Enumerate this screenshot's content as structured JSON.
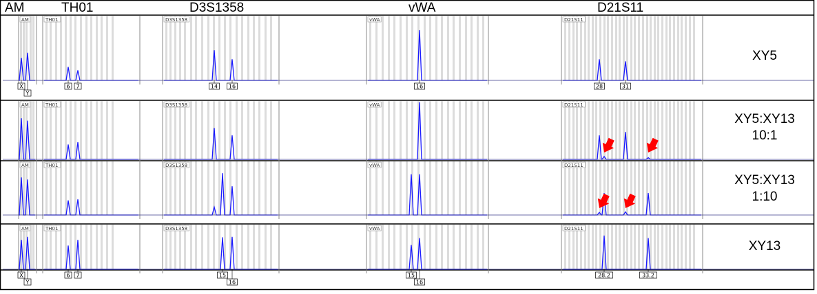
{
  "header": {
    "loci": [
      "AM",
      "TH01",
      "D3S1358",
      "vWA",
      "D21S11"
    ]
  },
  "panel_tags": [
    "AM",
    "TH01",
    "D3S1358",
    "vWA",
    "D21S11"
  ],
  "arrow_color": "#ff0000",
  "trace_color": "#1a1aff",
  "chart_data": {
    "type": "electropherogram",
    "samples": [
      {
        "name": "XY5",
        "label_lines": [
          "XY5"
        ],
        "peaks": {
          "AM": [
            {
              "allele": "X",
              "height": 0.45
            },
            {
              "allele": "Y",
              "height": 0.55
            }
          ],
          "TH01": [
            {
              "allele": "6",
              "height": 0.27
            },
            {
              "allele": "7",
              "height": 0.2
            }
          ],
          "D3S1358": [
            {
              "allele": "14",
              "height": 0.6
            },
            {
              "allele": "16",
              "height": 0.42
            }
          ],
          "vWA": [
            {
              "allele": "16",
              "height": 1.0
            }
          ],
          "D21S11": [
            {
              "allele": "28",
              "height": 0.42
            },
            {
              "allele": "31",
              "height": 0.38
            }
          ]
        },
        "labels_bottom": {
          "AM": [
            "X",
            "Y"
          ],
          "TH01": [
            "6",
            "7"
          ],
          "D3S1358": [
            "14",
            "16"
          ],
          "vWA": [
            "16"
          ],
          "D21S11": [
            "28",
            "31"
          ]
        },
        "arrows": []
      },
      {
        "name": "XY5:XY13 10:1",
        "label_lines": [
          "XY5:XY13",
          "10:1"
        ],
        "peaks": {
          "AM": [
            {
              "allele": "X",
              "height": 0.72
            },
            {
              "allele": "Y",
              "height": 0.68
            }
          ],
          "TH01": [
            {
              "allele": "6",
              "height": 0.26
            },
            {
              "allele": "7",
              "height": 0.3
            }
          ],
          "D3S1358": [
            {
              "allele": "14",
              "height": 0.55
            },
            {
              "allele": "16",
              "height": 0.42
            }
          ],
          "vWA": [
            {
              "allele": "16",
              "height": 1.0
            }
          ],
          "D21S11": [
            {
              "allele": "28",
              "height": 0.42
            },
            {
              "allele": "28.2",
              "height": 0.05
            },
            {
              "allele": "31",
              "height": 0.48
            },
            {
              "allele": "33.2",
              "height": 0.03
            }
          ]
        },
        "labels_bottom": {},
        "arrows": [
          {
            "allele": "28.2"
          },
          {
            "allele": "33.2"
          }
        ]
      },
      {
        "name": "XY5:XY13 1:10",
        "label_lines": [
          "XY5:XY13",
          "1:10"
        ],
        "peaks": {
          "AM": [
            {
              "allele": "X",
              "height": 0.72
            },
            {
              "allele": "Y",
              "height": 0.68
            }
          ],
          "TH01": [
            {
              "allele": "6",
              "height": 0.28
            },
            {
              "allele": "7",
              "height": 0.3
            }
          ],
          "D3S1358": [
            {
              "allele": "14",
              "height": 0.15
            },
            {
              "allele": "15",
              "height": 0.8
            },
            {
              "allele": "16",
              "height": 0.55
            }
          ],
          "vWA": [
            {
              "allele": "15",
              "height": 0.78
            },
            {
              "allele": "16",
              "height": 0.78
            }
          ],
          "D21S11": [
            {
              "allele": "28",
              "height": 0.05
            },
            {
              "allele": "28.2",
              "height": 0.42
            },
            {
              "allele": "31",
              "height": 0.06
            },
            {
              "allele": "33.2",
              "height": 0.42
            }
          ]
        },
        "labels_bottom": {},
        "arrows": [
          {
            "allele": "28"
          },
          {
            "allele": "31"
          }
        ]
      },
      {
        "name": "XY13",
        "label_lines": [
          "XY13"
        ],
        "peaks": {
          "AM": [
            {
              "allele": "X",
              "height": 0.68
            },
            {
              "allele": "Y",
              "height": 0.75
            }
          ],
          "TH01": [
            {
              "allele": "6",
              "height": 0.55
            },
            {
              "allele": "7",
              "height": 0.68
            }
          ],
          "D3S1358": [
            {
              "allele": "15",
              "height": 0.74
            },
            {
              "allele": "16",
              "height": 0.75
            }
          ],
          "vWA": [
            {
              "allele": "15",
              "height": 0.56
            },
            {
              "allele": "16",
              "height": 0.72
            }
          ],
          "D21S11": [
            {
              "allele": "28.2",
              "height": 0.78
            },
            {
              "allele": "33.2",
              "height": 0.72
            }
          ]
        },
        "labels_bottom": {
          "AM": [
            "X",
            "Y"
          ],
          "TH01": [
            "6",
            "7"
          ],
          "D3S1358": [
            "15",
            "16"
          ],
          "vWA": [
            "15",
            "16"
          ],
          "D21S11": [
            "28.2",
            "33.2"
          ]
        },
        "arrows": []
      }
    ]
  }
}
